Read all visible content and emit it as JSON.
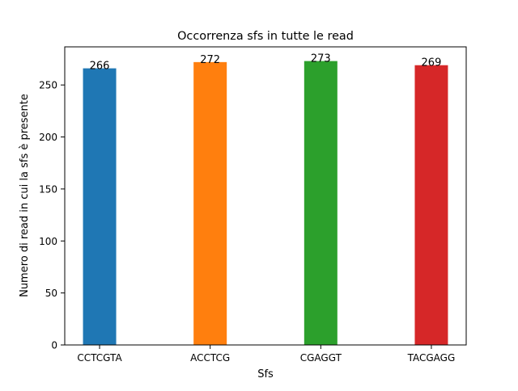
{
  "chart_data": {
    "type": "bar",
    "title": "Occorrenza sfs in tutte le read",
    "xlabel": "Sfs",
    "ylabel": "Numero di read in cui la sfs è presente",
    "categories": [
      "CCTCGTA",
      "ACCTCG",
      "CGAGGT",
      "TACGAGG"
    ],
    "values": [
      266,
      272,
      273,
      269
    ],
    "data_labels": [
      "266",
      "272",
      "273",
      "269"
    ],
    "colors": [
      "#1f77b4",
      "#ff7f0e",
      "#2ca02c",
      "#d62728"
    ],
    "ylim": [
      0,
      286.65
    ],
    "yticks": [
      0,
      50,
      100,
      150,
      200,
      250
    ],
    "grid": false,
    "legend": "none"
  }
}
